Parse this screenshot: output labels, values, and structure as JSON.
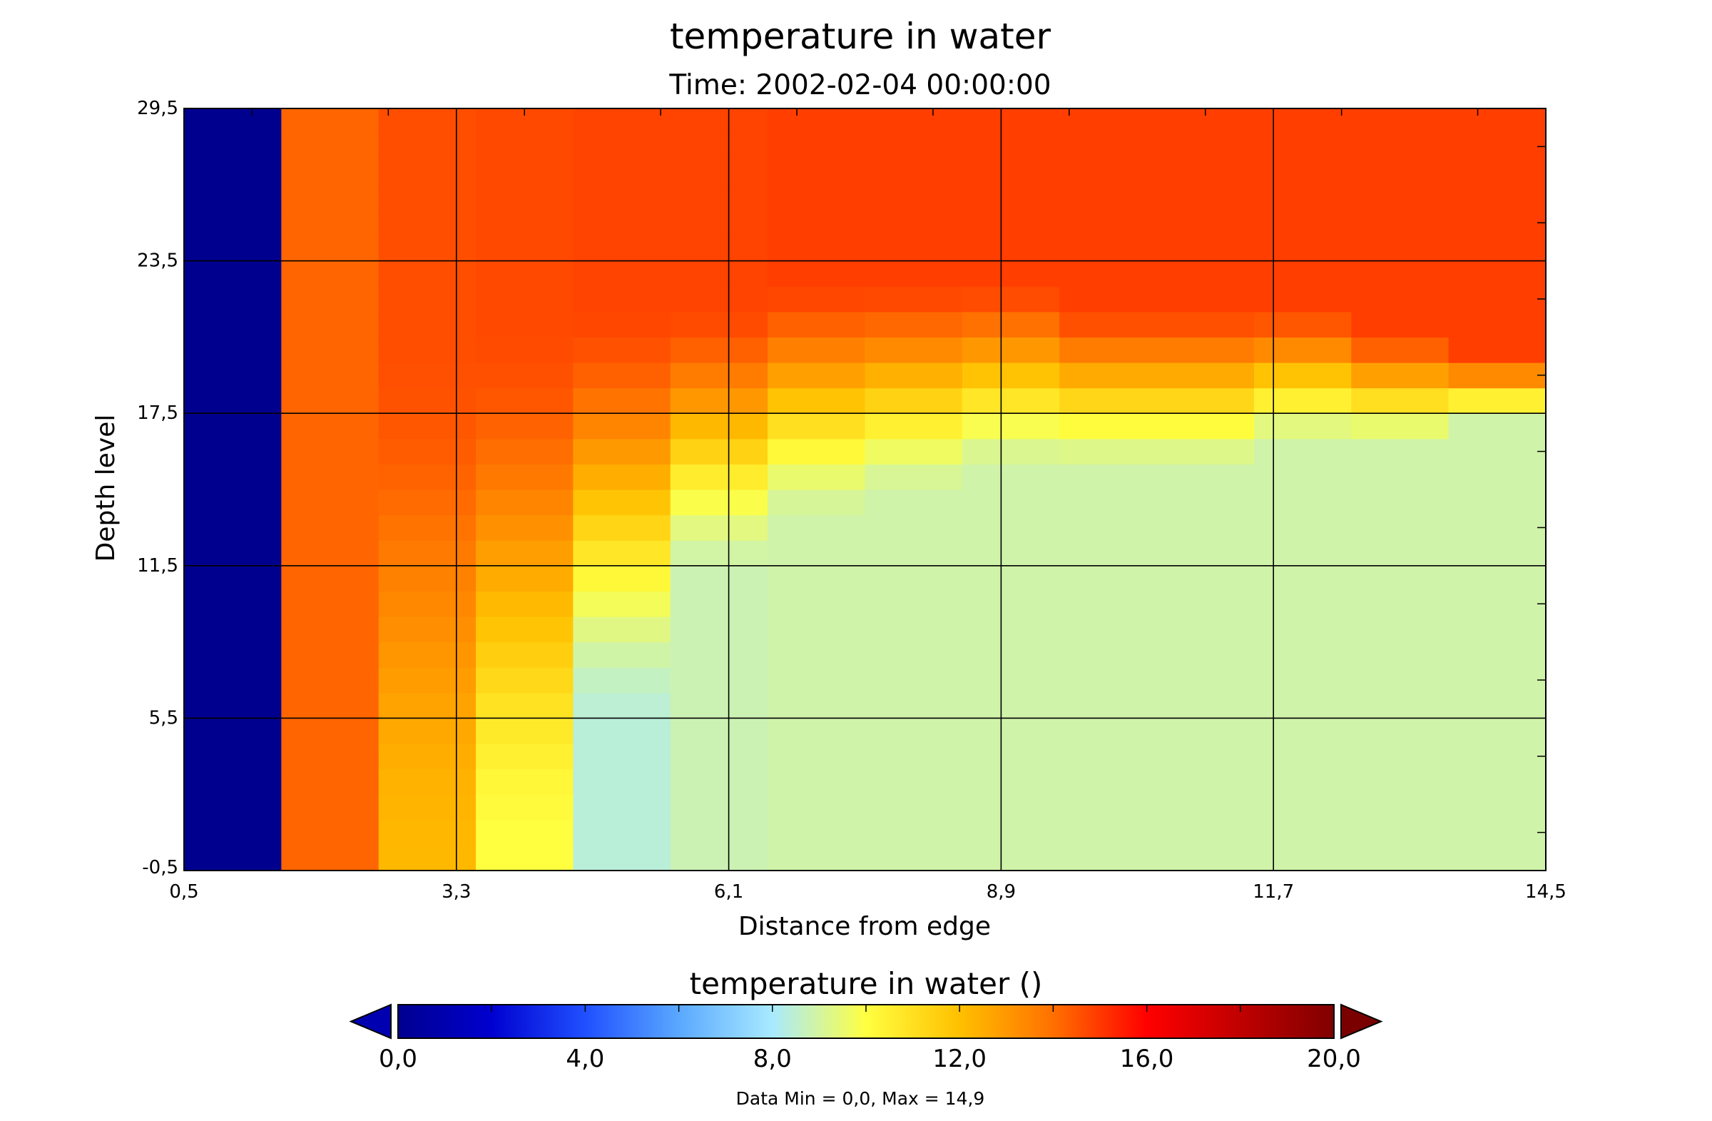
{
  "chart_data": {
    "type": "heatmap",
    "title": "temperature in water",
    "subtitle": "Time: 2002-02-04 00:00:00",
    "xlabel": "Distance from edge",
    "ylabel": "Depth level",
    "xlim": [
      0.5,
      14.5
    ],
    "ylim": [
      -0.5,
      29.5
    ],
    "x_ticks": [
      "0,5",
      "3,3",
      "6,1",
      "8,9",
      "11,7",
      "14,5"
    ],
    "y_ticks": [
      "-0,5",
      "5,5",
      "11,5",
      "17,5",
      "23,5",
      "29,5"
    ],
    "grid": true,
    "x_values": [
      1,
      2,
      3,
      4,
      5,
      6,
      7,
      8,
      9,
      10,
      11,
      12,
      13,
      14
    ],
    "column_profiles": [
      {
        "x": 1,
        "bottom": 0.0,
        "thermocline_top": 0,
        "surface": 0.0
      },
      {
        "x": 2,
        "bottom": 14.2,
        "thermocline_top": 0,
        "surface": 14.2
      },
      {
        "x": 3,
        "bottom": 12.2,
        "thermocline_top": 20,
        "surface": 14.6
      },
      {
        "x": 4,
        "bottom": 10.0,
        "thermocline_top": 21,
        "surface": 14.7
      },
      {
        "x": 5,
        "bottom": 8.4,
        "thermocline_top": 22,
        "surface": 14.8
      },
      {
        "x": 6,
        "bottom": 8.8,
        "thermocline_top": 22,
        "surface": 14.8
      },
      {
        "x": 7,
        "bottom": 8.9,
        "thermocline_top": 23,
        "surface": 14.9
      },
      {
        "x": 8,
        "bottom": 8.9,
        "thermocline_top": 23,
        "surface": 14.9
      },
      {
        "x": 9,
        "bottom": 8.9,
        "thermocline_top": 23,
        "surface": 14.9
      },
      {
        "x": 10,
        "bottom": 8.9,
        "thermocline_top": 22,
        "surface": 14.9
      },
      {
        "x": 11,
        "bottom": 8.9,
        "thermocline_top": 22,
        "surface": 14.9
      },
      {
        "x": 12,
        "bottom": 8.9,
        "thermocline_top": 22,
        "surface": 14.9
      },
      {
        "x": 13,
        "bottom": 8.9,
        "thermocline_top": 21,
        "surface": 14.9
      },
      {
        "x": 14,
        "bottom": 8.9,
        "thermocline_top": 20,
        "surface": 14.9
      }
    ],
    "thermocline_bottom": [
      0,
      0,
      0,
      0,
      5,
      11,
      13,
      14,
      15,
      15,
      15,
      16,
      16,
      17
    ],
    "colorbar": {
      "title": "temperature in water ()",
      "min": 0.0,
      "max": 20.0,
      "ticks": [
        "0,0",
        "4,0",
        "8,0",
        "12,0",
        "16,0",
        "20,0"
      ],
      "tick_values": [
        0,
        4,
        8,
        12,
        16,
        20
      ],
      "colormap": [
        "#00008f",
        "#0000d0",
        "#2050ff",
        "#5aa8ff",
        "#a8eaff",
        "#ffff40",
        "#ffc000",
        "#ff7000",
        "#ff0000",
        "#c00000",
        "#800000"
      ],
      "extend_low_color": "#0000b0",
      "extend_high_color": "#7a0000"
    },
    "data_range_text": "Data Min = 0,0, Max = 14,9"
  }
}
